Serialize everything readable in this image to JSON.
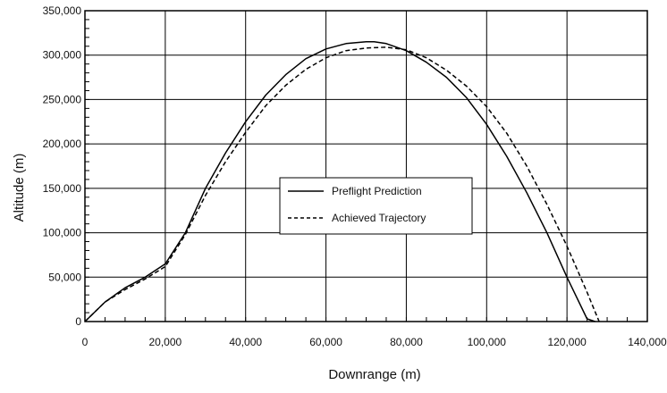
{
  "chart_data": {
    "type": "line",
    "title": "",
    "xlabel": "Downrange (m)",
    "ylabel": "Altitude (m)",
    "xlim": [
      0,
      140000
    ],
    "ylim": [
      0,
      350000
    ],
    "grid": true,
    "legend_position": "center",
    "x_ticks": [
      "0",
      "20,000",
      "40,000",
      "60,000",
      "80,000",
      "100,000",
      "120,000",
      "140,000"
    ],
    "y_ticks": [
      "0",
      "50,000",
      "100,000",
      "150,000",
      "200,000",
      "250,000",
      "300,000",
      "350,000"
    ],
    "series": [
      {
        "name": "Preflight Prediction",
        "style": "solid",
        "color": "#000000",
        "x": [
          0,
          5000,
          10000,
          15000,
          20000,
          25000,
          30000,
          35000,
          40000,
          45000,
          50000,
          55000,
          60000,
          65000,
          70000,
          72000,
          75000,
          80000,
          85000,
          90000,
          95000,
          100000,
          105000,
          110000,
          115000,
          120000,
          125000,
          127000
        ],
        "y": [
          0,
          22000,
          38000,
          50000,
          65000,
          100000,
          150000,
          190000,
          225000,
          255000,
          278000,
          296000,
          307000,
          313000,
          315000,
          315000,
          313000,
          305000,
          292000,
          275000,
          252000,
          222000,
          186000,
          145000,
          100000,
          50000,
          3000,
          0
        ]
      },
      {
        "name": "Achieved Trajectory",
        "style": "dashed",
        "color": "#000000",
        "x": [
          0,
          5000,
          10000,
          15000,
          20000,
          25000,
          30000,
          35000,
          40000,
          45000,
          50000,
          55000,
          60000,
          65000,
          70000,
          75000,
          80000,
          85000,
          90000,
          95000,
          100000,
          105000,
          110000,
          115000,
          120000,
          125000,
          128000
        ],
        "y": [
          0,
          22000,
          36000,
          48000,
          62000,
          98000,
          142000,
          180000,
          213000,
          243000,
          266000,
          284000,
          297000,
          305000,
          308000,
          309000,
          306000,
          297000,
          283000,
          265000,
          242000,
          212000,
          175000,
          132000,
          85000,
          33000,
          0
        ]
      }
    ]
  }
}
